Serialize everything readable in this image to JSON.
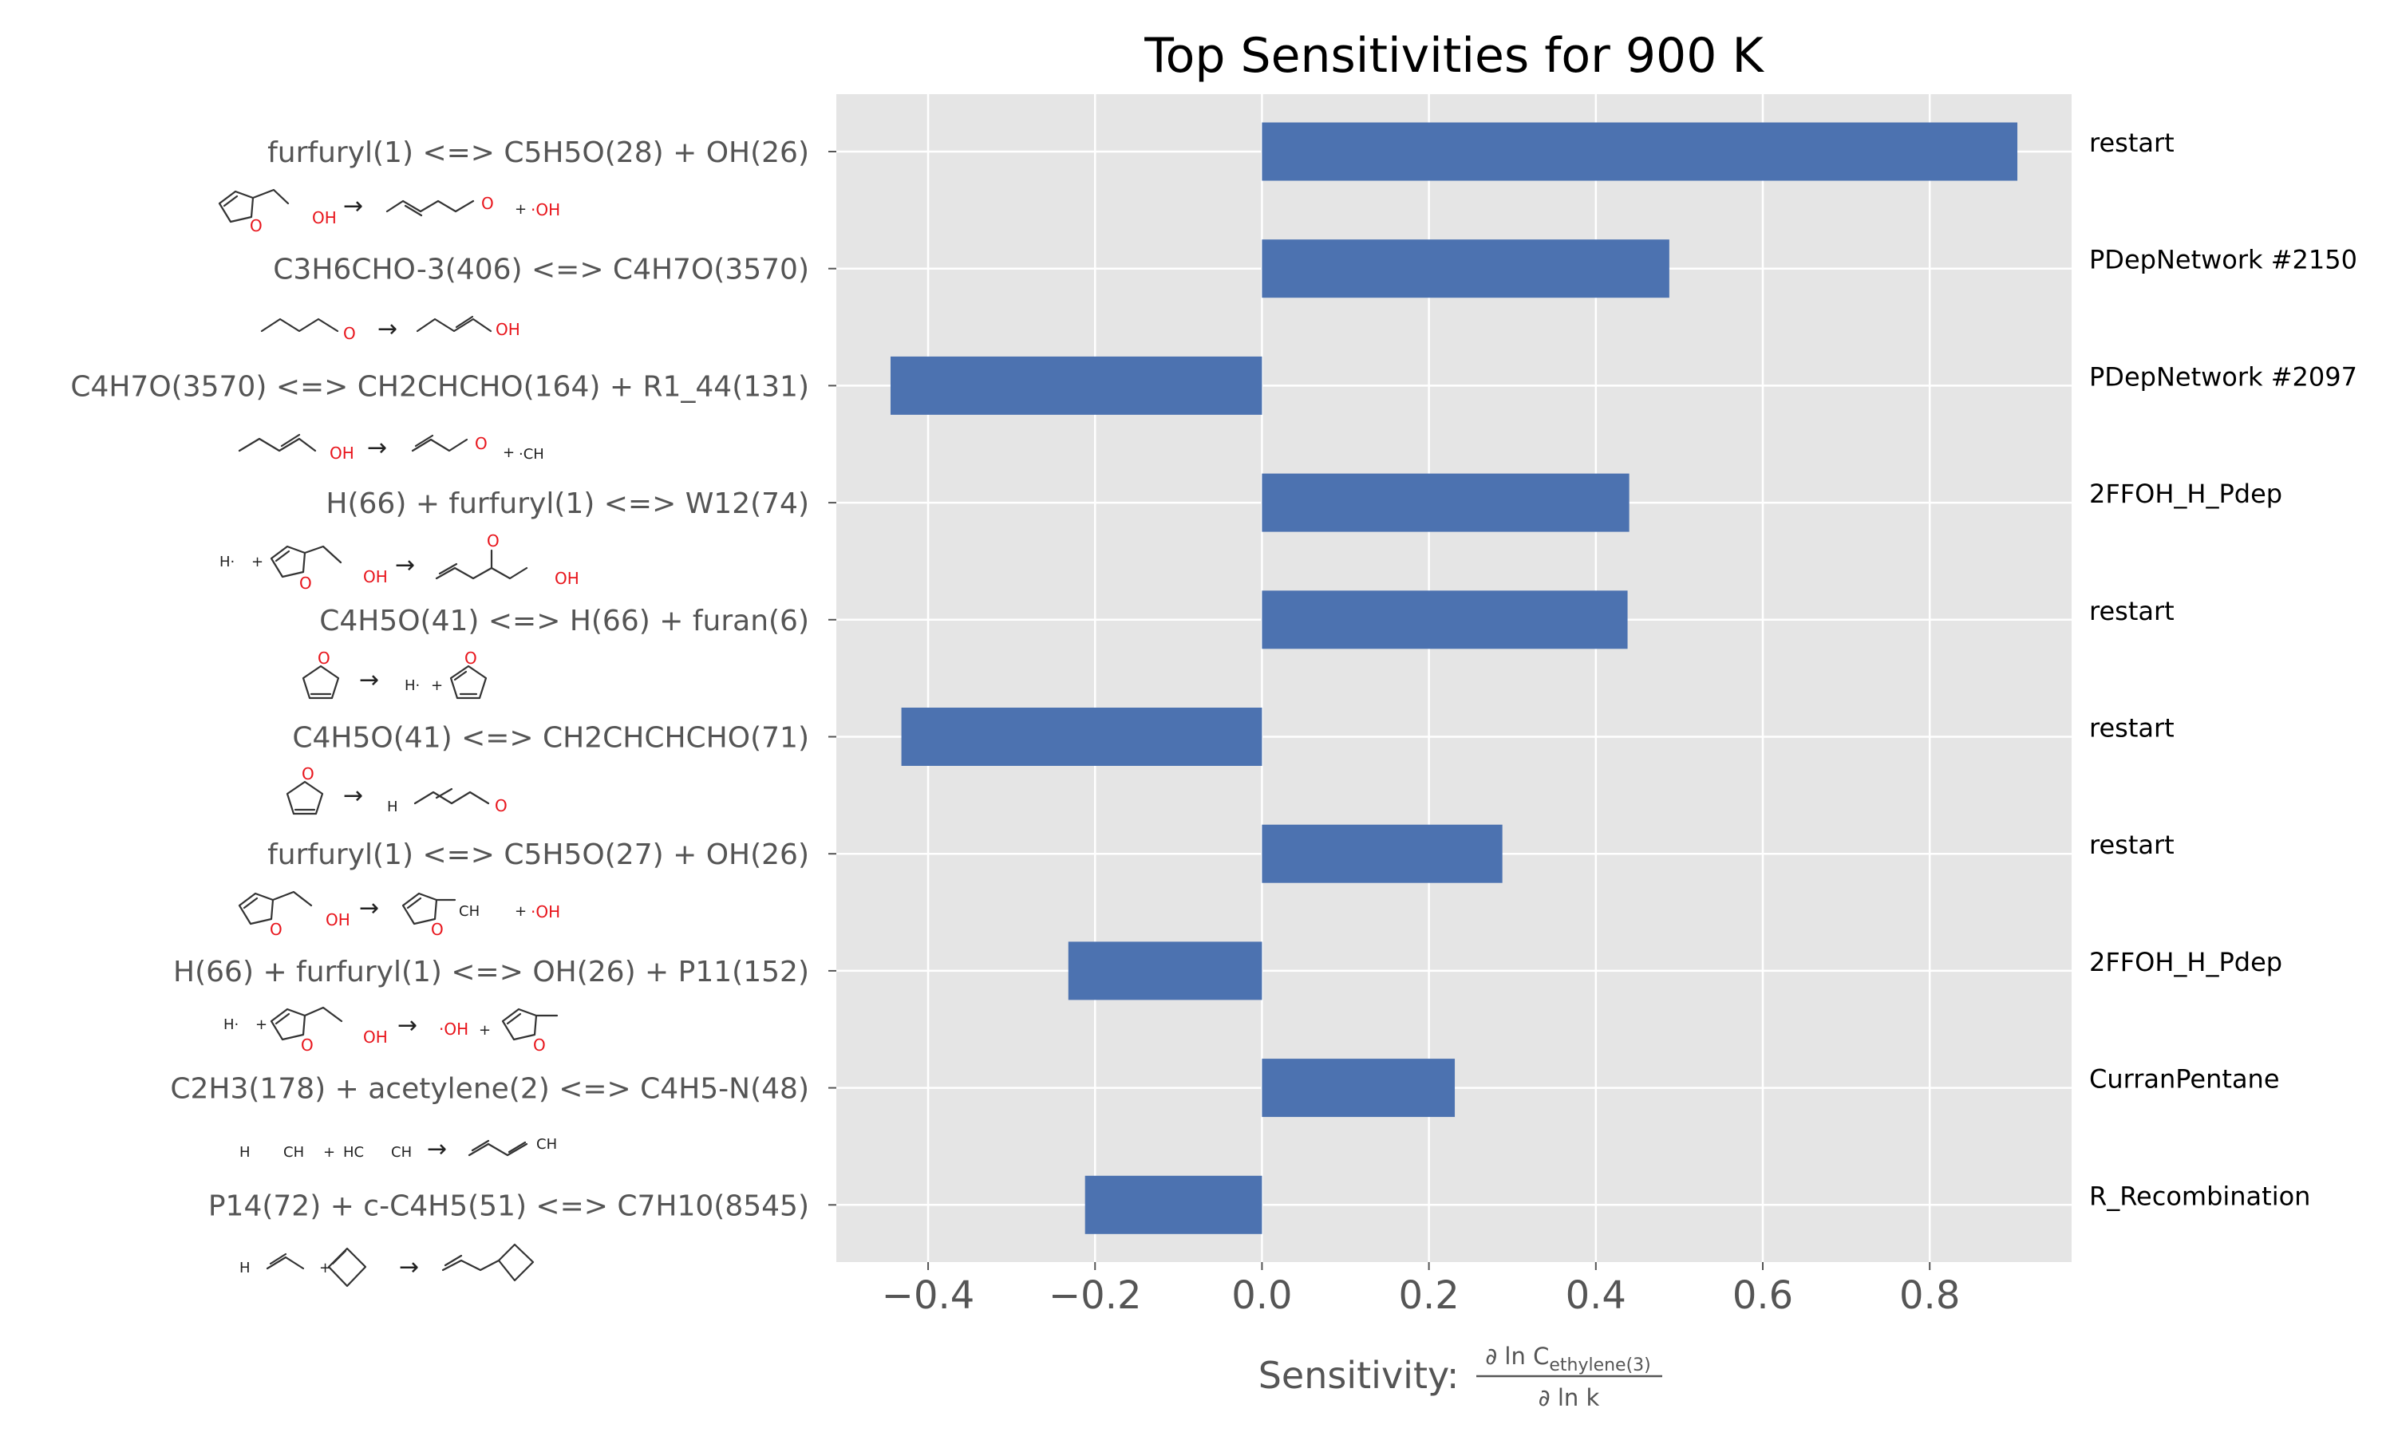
{
  "chart_data": {
    "type": "bar",
    "orientation": "horizontal",
    "title": "Top Sensitivities for 900 K",
    "xlabel_prefix": "Sensitivity: ",
    "xlabel_numerator": "∂ ln C",
    "xlabel_numerator_sub": "ethylene(3)",
    "xlabel_denominator": "∂ ln k",
    "xlim": [
      -0.51,
      0.97
    ],
    "xticks": [
      -0.4,
      -0.2,
      0.0,
      0.2,
      0.4,
      0.6,
      0.8
    ],
    "xtick_labels": [
      "−0.4",
      "−0.2",
      "0.0",
      "0.2",
      "0.4",
      "0.6",
      "0.8"
    ],
    "grid": true,
    "bar_color": "#4c72b0",
    "background_color": "#e5e5e5",
    "categories": [
      "furfuryl(1) <=> C5H5O(28) + OH(26)",
      "C3H6CHO-3(406) <=> C4H7O(3570)",
      "C4H7O(3570) <=> CH2CHCHO(164) + R1_44(131)",
      "H(66) + furfuryl(1) <=> W12(74)",
      "C4H5O(41) <=> H(66) + furan(6)",
      "C4H5O(41) <=> CH2CHCHCHO(71)",
      "furfuryl(1) <=> C5H5O(27) + OH(26)",
      "H(66) + furfuryl(1) <=> OH(26) + P11(152)",
      "C2H3(178) + acetylene(2) <=> C4H5-N(48)",
      "P14(72) + c-C4H5(51) <=> C7H10(8545)"
    ],
    "values": [
      0.905,
      0.488,
      -0.445,
      0.44,
      0.438,
      -0.432,
      0.288,
      -0.232,
      0.231,
      -0.212
    ],
    "families": [
      "restart",
      "PDepNetwork #2150",
      "PDepNetwork #2097",
      "2FFOH_H_Pdep",
      "restart",
      "restart",
      "restart",
      "2FFOH_H_Pdep",
      "CurranPentane",
      "R_Recombination"
    ]
  },
  "structure_text": {
    "oh": "OH",
    "o": "O",
    "dot_oh": "·OH",
    "h_dot": "H·",
    "plus": "+",
    "arrow": "→",
    "ch3": "·CH",
    "h2c": "H",
    "ch": "CH",
    "hc": "HC",
    "ch2": "CH"
  }
}
